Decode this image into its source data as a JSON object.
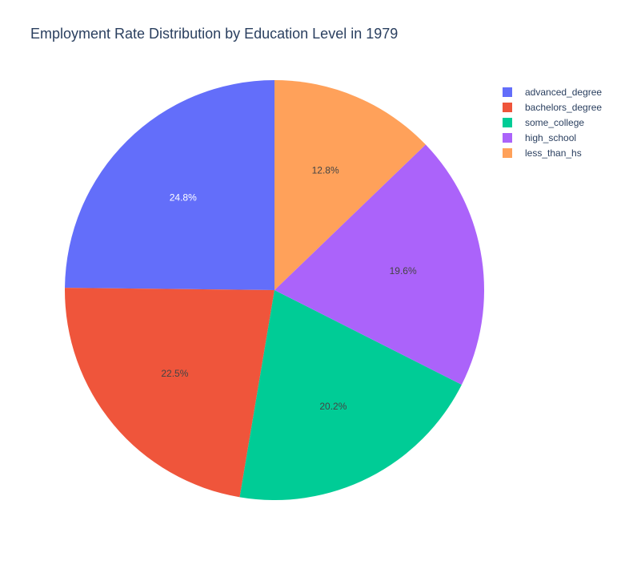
{
  "chart_data": {
    "type": "pie",
    "title": "Employment Rate Distribution by Education Level in 1979",
    "categories": [
      "advanced_degree",
      "bachelors_degree",
      "some_college",
      "high_school",
      "less_than_hs"
    ],
    "values": [
      24.8,
      22.5,
      20.2,
      19.6,
      12.8
    ],
    "value_labels": [
      "24.8%",
      "22.5%",
      "20.2%",
      "19.6%",
      "12.8%"
    ],
    "colors": [
      "#636efa",
      "#EF553B",
      "#00cc96",
      "#ab63fa",
      "#FFA15A"
    ],
    "label_colors": [
      "#ffffff",
      "#444444",
      "#444444",
      "#444444",
      "#444444"
    ],
    "slice_order": [
      0,
      1,
      2,
      3,
      4
    ],
    "direction": "counterclockwise",
    "start_angle_deg": 90,
    "legend": {
      "placement": "top-right",
      "order": [
        0,
        1,
        2,
        3,
        4
      ]
    }
  }
}
